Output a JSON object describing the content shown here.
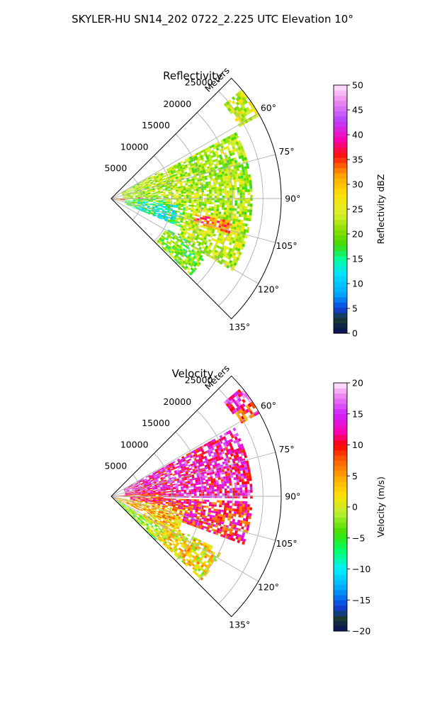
{
  "figure": {
    "title": "SKYLER-HU  SN14_202  0722_2.225 UTC Elevation 10°"
  },
  "chart_data": [
    {
      "type": "heatmap",
      "subtype": "polar-sector (PPI)",
      "title": "Reflectivity",
      "range_label": "Meters",
      "range_ticks": [
        5000,
        10000,
        15000,
        20000,
        25000
      ],
      "range_tick_labels": [
        "5000",
        "10000",
        "15000",
        "20000",
        "25000"
      ],
      "range_max": 28000,
      "azimuth_ticks": [
        60,
        75,
        90,
        105,
        120,
        135
      ],
      "azimuth_tick_labels": [
        "60°",
        "75°",
        "90°",
        "105°",
        "120°",
        "135°"
      ],
      "azimuth_range": [
        45,
        135
      ],
      "grid": true,
      "colorbar": {
        "label": "Reflectivity dBZ",
        "range": [
          0,
          50
        ],
        "ticks": [
          0,
          5,
          10,
          15,
          20,
          25,
          30,
          35,
          40,
          45,
          50
        ],
        "tick_labels": [
          "0",
          "5",
          "10",
          "15",
          "20",
          "25",
          "30",
          "35",
          "40",
          "45",
          "50"
        ],
        "colormap": [
          {
            "v": 0,
            "c": "#0a1060"
          },
          {
            "v": 3,
            "c": "#173a2c"
          },
          {
            "v": 5,
            "c": "#1040e0"
          },
          {
            "v": 8,
            "c": "#00a8ff"
          },
          {
            "v": 12,
            "c": "#00e0ff"
          },
          {
            "v": 15,
            "c": "#00ff99"
          },
          {
            "v": 18,
            "c": "#44d800"
          },
          {
            "v": 21,
            "c": "#8ee000"
          },
          {
            "v": 24,
            "c": "#d8f030"
          },
          {
            "v": 28,
            "c": "#ffe200"
          },
          {
            "v": 32,
            "c": "#ff9e00"
          },
          {
            "v": 36,
            "c": "#ff1010"
          },
          {
            "v": 39,
            "c": "#ff00b0"
          },
          {
            "v": 43,
            "c": "#b844ff"
          },
          {
            "v": 47,
            "c": "#ee90ee"
          },
          {
            "v": 50,
            "c": "#ffe6ff"
          }
        ]
      },
      "echo_regions": [
        {
          "az": [
            49,
            60
          ],
          "r": [
            24000,
            28000
          ],
          "value": 24
        },
        {
          "az": [
            60,
            90
          ],
          "r": [
            1500,
            9000
          ],
          "value": 22
        },
        {
          "az": [
            88,
            100
          ],
          "r": [
            0,
            5000
          ],
          "value": 33
        },
        {
          "az": [
            90,
            112
          ],
          "r": [
            2000,
            15000
          ],
          "value": 19
        },
        {
          "az": [
            62,
            96
          ],
          "r": [
            9000,
            23000
          ],
          "value": 22
        },
        {
          "az": [
            96,
            120
          ],
          "r": [
            12000,
            23000
          ],
          "value": 23
        },
        {
          "az": [
            118,
            134
          ],
          "r": [
            10000,
            18000
          ],
          "value": 20
        },
        {
          "az": [
            100,
            106
          ],
          "r": [
            14000,
            20000
          ],
          "value": 34
        },
        {
          "az": [
            95,
            112
          ],
          "r": [
            4000,
            11000
          ],
          "value": 14
        }
      ]
    },
    {
      "type": "heatmap",
      "subtype": "polar-sector (PPI)",
      "title": "Velocity",
      "range_label": "Meters",
      "range_ticks": [
        5000,
        10000,
        15000,
        20000,
        25000
      ],
      "range_tick_labels": [
        "5000",
        "10000",
        "15000",
        "20000",
        "25000"
      ],
      "range_max": 28000,
      "azimuth_ticks": [
        60,
        75,
        90,
        105,
        120,
        135
      ],
      "azimuth_tick_labels": [
        "60°",
        "75°",
        "90°",
        "105°",
        "120°",
        "135°"
      ],
      "azimuth_range": [
        45,
        135
      ],
      "grid": true,
      "colorbar": {
        "label": "Velocity (m/s)",
        "range": [
          -20,
          20
        ],
        "ticks": [
          -20,
          -15,
          -10,
          -5,
          0,
          5,
          10,
          15,
          20
        ],
        "tick_labels": [
          "−20",
          "−15",
          "−10",
          "−5",
          "0",
          "5",
          "10",
          "15",
          "20"
        ],
        "colormap": [
          {
            "v": -20,
            "c": "#0a1060"
          },
          {
            "v": -18,
            "c": "#173a2c"
          },
          {
            "v": -16,
            "c": "#1040e0"
          },
          {
            "v": -13,
            "c": "#00a8ff"
          },
          {
            "v": -10,
            "c": "#00f0ff"
          },
          {
            "v": -7,
            "c": "#00ff66"
          },
          {
            "v": -4,
            "c": "#44dd00"
          },
          {
            "v": -1,
            "c": "#b8f030"
          },
          {
            "v": 2,
            "c": "#ffe000"
          },
          {
            "v": 5,
            "c": "#ffa400"
          },
          {
            "v": 8,
            "c": "#ff5000"
          },
          {
            "v": 10,
            "c": "#ff0000"
          },
          {
            "v": 12,
            "c": "#ff00aa"
          },
          {
            "v": 15,
            "c": "#cc22ff"
          },
          {
            "v": 18,
            "c": "#ee88ee"
          },
          {
            "v": 20,
            "c": "#ffeaff"
          }
        ]
      },
      "echo_regions": [
        {
          "az": [
            49,
            55
          ],
          "r": [
            24000,
            28000
          ],
          "value": 14
        },
        {
          "az": [
            55,
            60
          ],
          "r": [
            24500,
            28000
          ],
          "value": 8
        },
        {
          "az": [
            60,
            90
          ],
          "r": [
            2000,
            23000
          ],
          "value": 13
        },
        {
          "az": [
            84,
            92
          ],
          "r": [
            0,
            9000
          ],
          "value": 9
        },
        {
          "az": [
            92,
            110
          ],
          "r": [
            3000,
            23000
          ],
          "value": 10
        },
        {
          "az": [
            100,
            115
          ],
          "r": [
            500,
            12000
          ],
          "value": 4
        },
        {
          "az": [
            115,
            132
          ],
          "r": [
            6000,
            20000
          ],
          "value": 2
        },
        {
          "az": [
            122,
            135
          ],
          "r": [
            1000,
            10000
          ],
          "value": -2
        }
      ]
    }
  ]
}
